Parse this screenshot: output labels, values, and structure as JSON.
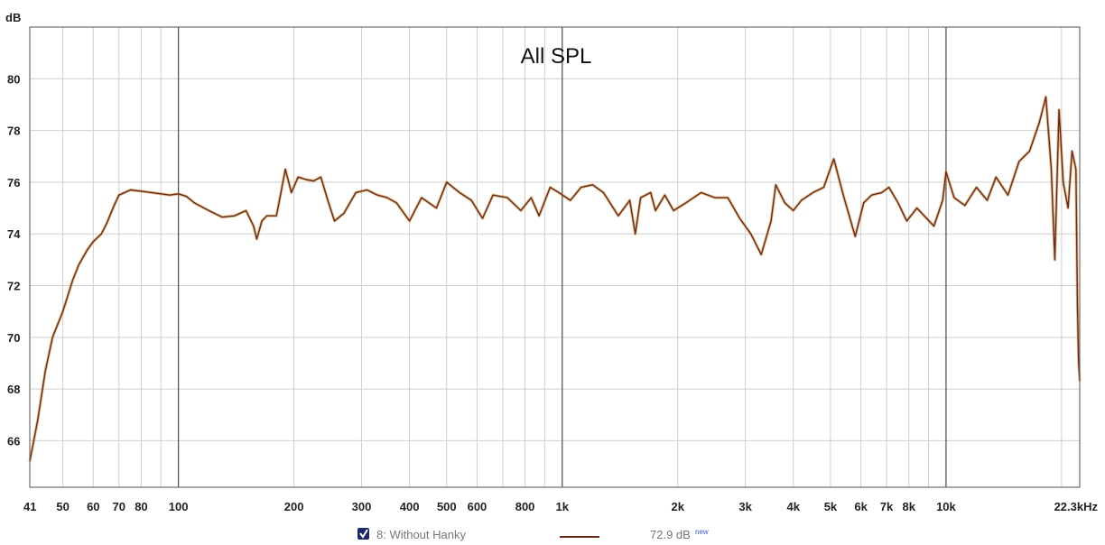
{
  "chart_data": {
    "type": "line",
    "title": "All SPL",
    "ylabel": "dB",
    "xlabel": "",
    "x_scale": "log",
    "xlim": [
      41,
      22300
    ],
    "ylim": [
      64.2,
      82
    ],
    "y_ticks": [
      66,
      68,
      70,
      72,
      74,
      76,
      78,
      80
    ],
    "x_ticks": [
      {
        "v": 41,
        "label": "41"
      },
      {
        "v": 50,
        "label": "50"
      },
      {
        "v": 60,
        "label": "60"
      },
      {
        "v": 70,
        "label": "70"
      },
      {
        "v": 80,
        "label": "80"
      },
      {
        "v": 100,
        "label": "100"
      },
      {
        "v": 200,
        "label": "200"
      },
      {
        "v": 300,
        "label": "300"
      },
      {
        "v": 400,
        "label": "400"
      },
      {
        "v": 500,
        "label": "500"
      },
      {
        "v": 600,
        "label": "600"
      },
      {
        "v": 800,
        "label": "800"
      },
      {
        "v": 1000,
        "label": "1k"
      },
      {
        "v": 2000,
        "label": "2k"
      },
      {
        "v": 3000,
        "label": "3k"
      },
      {
        "v": 4000,
        "label": "4k"
      },
      {
        "v": 5000,
        "label": "5k"
      },
      {
        "v": 6000,
        "label": "6k"
      },
      {
        "v": 7000,
        "label": "7k"
      },
      {
        "v": 8000,
        "label": "8k"
      },
      {
        "v": 10000,
        "label": "10k"
      },
      {
        "v": 22300,
        "label": "22.3kHz"
      }
    ],
    "minor_x": [
      90,
      700,
      900,
      9000,
      20000
    ],
    "major_x": [
      100,
      1000,
      10000
    ],
    "grid": true,
    "series": [
      {
        "name": "8: Without Hanky",
        "color": "#6b2a1c",
        "highlight_color": "#c98a2e",
        "checked": true,
        "reading": "72.9 dB",
        "reading_suffix": "new",
        "points": [
          [
            41,
            65.2
          ],
          [
            43,
            66.8
          ],
          [
            45,
            68.7
          ],
          [
            47,
            70.0
          ],
          [
            50,
            71.0
          ],
          [
            53,
            72.2
          ],
          [
            55,
            72.8
          ],
          [
            58,
            73.4
          ],
          [
            60,
            73.7
          ],
          [
            63,
            74.0
          ],
          [
            65,
            74.4
          ],
          [
            68,
            75.1
          ],
          [
            70,
            75.5
          ],
          [
            75,
            75.7
          ],
          [
            80,
            75.65
          ],
          [
            85,
            75.6
          ],
          [
            90,
            75.55
          ],
          [
            95,
            75.5
          ],
          [
            100,
            75.55
          ],
          [
            105,
            75.45
          ],
          [
            110,
            75.2
          ],
          [
            120,
            74.9
          ],
          [
            130,
            74.65
          ],
          [
            140,
            74.7
          ],
          [
            150,
            74.9
          ],
          [
            157,
            74.3
          ],
          [
            160,
            73.8
          ],
          [
            165,
            74.5
          ],
          [
            170,
            74.7
          ],
          [
            180,
            74.7
          ],
          [
            185,
            75.6
          ],
          [
            190,
            76.5
          ],
          [
            197,
            75.6
          ],
          [
            205,
            76.2
          ],
          [
            215,
            76.1
          ],
          [
            225,
            76.05
          ],
          [
            235,
            76.2
          ],
          [
            245,
            75.3
          ],
          [
            255,
            74.5
          ],
          [
            270,
            74.8
          ],
          [
            290,
            75.6
          ],
          [
            310,
            75.7
          ],
          [
            330,
            75.5
          ],
          [
            350,
            75.4
          ],
          [
            370,
            75.2
          ],
          [
            400,
            74.5
          ],
          [
            430,
            75.4
          ],
          [
            470,
            75.0
          ],
          [
            500,
            76.0
          ],
          [
            540,
            75.6
          ],
          [
            580,
            75.3
          ],
          [
            620,
            74.6
          ],
          [
            660,
            75.5
          ],
          [
            720,
            75.4
          ],
          [
            780,
            74.9
          ],
          [
            830,
            75.4
          ],
          [
            870,
            74.7
          ],
          [
            930,
            75.8
          ],
          [
            980,
            75.6
          ],
          [
            1050,
            75.3
          ],
          [
            1120,
            75.8
          ],
          [
            1200,
            75.9
          ],
          [
            1280,
            75.6
          ],
          [
            1400,
            74.7
          ],
          [
            1500,
            75.3
          ],
          [
            1550,
            74.0
          ],
          [
            1600,
            75.4
          ],
          [
            1700,
            75.6
          ],
          [
            1750,
            74.9
          ],
          [
            1850,
            75.5
          ],
          [
            1950,
            74.9
          ],
          [
            2100,
            75.2
          ],
          [
            2300,
            75.6
          ],
          [
            2500,
            75.4
          ],
          [
            2700,
            75.4
          ],
          [
            2900,
            74.6
          ],
          [
            3100,
            74.0
          ],
          [
            3300,
            73.2
          ],
          [
            3500,
            74.5
          ],
          [
            3600,
            75.9
          ],
          [
            3800,
            75.2
          ],
          [
            4000,
            74.9
          ],
          [
            4200,
            75.3
          ],
          [
            4500,
            75.6
          ],
          [
            4800,
            75.8
          ],
          [
            5100,
            76.9
          ],
          [
            5400,
            75.5
          ],
          [
            5800,
            73.9
          ],
          [
            6100,
            75.2
          ],
          [
            6400,
            75.5
          ],
          [
            6800,
            75.6
          ],
          [
            7100,
            75.8
          ],
          [
            7500,
            75.2
          ],
          [
            7900,
            74.5
          ],
          [
            8400,
            75.0
          ],
          [
            8900,
            74.6
          ],
          [
            9300,
            74.3
          ],
          [
            9800,
            75.3
          ],
          [
            10000,
            76.4
          ],
          [
            10500,
            75.4
          ],
          [
            11200,
            75.1
          ],
          [
            12000,
            75.8
          ],
          [
            12800,
            75.3
          ],
          [
            13500,
            76.2
          ],
          [
            14500,
            75.5
          ],
          [
            15500,
            76.8
          ],
          [
            16500,
            77.2
          ],
          [
            17500,
            78.3
          ],
          [
            18200,
            79.3
          ],
          [
            18800,
            76.5
          ],
          [
            19200,
            73.0
          ],
          [
            19700,
            78.8
          ],
          [
            20200,
            76.0
          ],
          [
            20800,
            75.0
          ],
          [
            21300,
            77.2
          ],
          [
            21800,
            76.5
          ],
          [
            22000,
            71.2
          ],
          [
            22150,
            69.0
          ],
          [
            22300,
            68.3
          ]
        ]
      }
    ]
  }
}
